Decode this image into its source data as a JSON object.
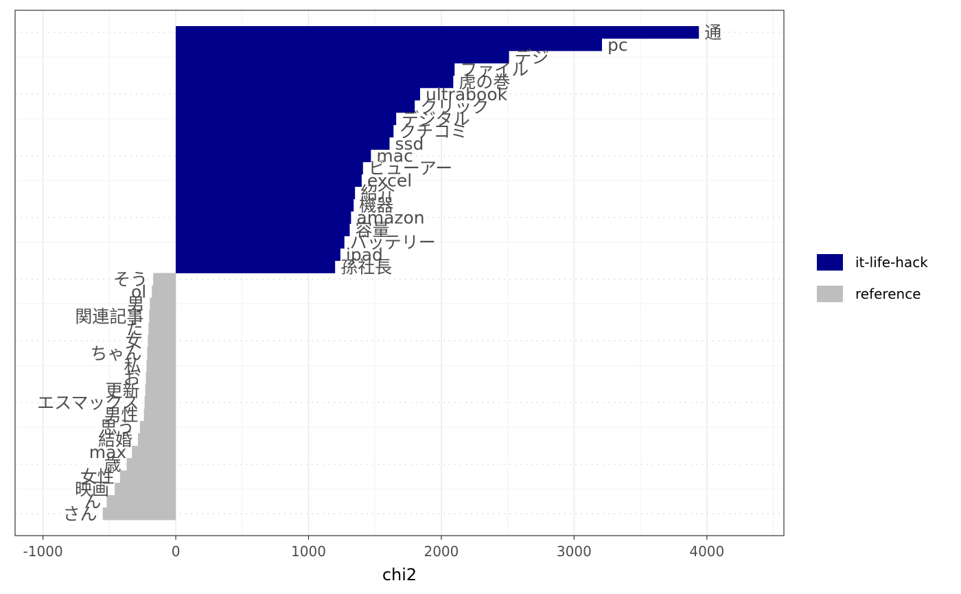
{
  "chart_data": {
    "type": "bar",
    "orientation": "horizontal",
    "xlabel": "chi2",
    "ylabel": "",
    "xlim": [
      -1210,
      4580
    ],
    "x_ticks": [
      -1000,
      0,
      1000,
      2000,
      3000,
      4000
    ],
    "x_tick_labels": [
      "-1000",
      "0",
      "1000",
      "2000",
      "3000",
      "4000"
    ],
    "grid": true,
    "legend_position": "right",
    "colors": {
      "it-life-hack": "#00008B",
      "reference": "#BEBEBE"
    },
    "legend": [
      {
        "name": "it-life-hack",
        "color": "#00008B"
      },
      {
        "name": "reference",
        "color": "#BEBEBE"
      }
    ],
    "series": [
      {
        "name": "it-life-hack",
        "categories": [
          "通",
          "pc",
          "デジ",
          "ファイル",
          "虎の巻",
          "ultrabook",
          "クリック",
          "デジタル",
          "クチコミ",
          "ssd",
          "mac",
          "ビューアー",
          "excel",
          "紹介",
          "機器",
          "amazon",
          "容量",
          "バッテリー",
          "ipad",
          "孫社長"
        ],
        "values": [
          3940,
          3210,
          2510,
          2100,
          2090,
          1840,
          1800,
          1660,
          1640,
          1610,
          1470,
          1410,
          1400,
          1350,
          1340,
          1320,
          1310,
          1270,
          1240,
          1200
        ]
      },
      {
        "name": "reference",
        "categories": [
          "そう",
          "ol",
          "男",
          "関連記事",
          "た",
          "女",
          "ちゃん",
          "私",
          "お",
          "更新",
          "エスマックス",
          "男性",
          "思う",
          "結婚",
          "max",
          "歳",
          "女性",
          "映画",
          "ん",
          "さん"
        ],
        "values": [
          -170,
          -180,
          -195,
          -200,
          -205,
          -210,
          -215,
          -220,
          -225,
          -230,
          -235,
          -240,
          -270,
          -285,
          -330,
          -370,
          -420,
          -460,
          -520,
          -550
        ]
      }
    ]
  }
}
